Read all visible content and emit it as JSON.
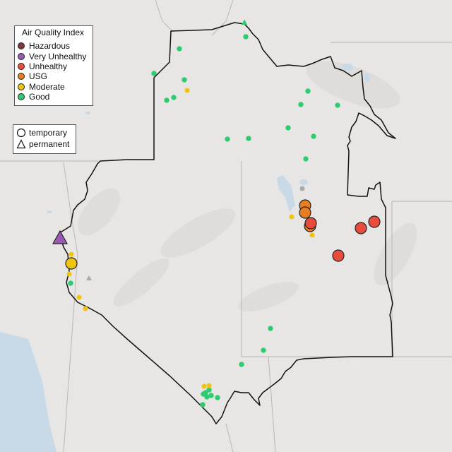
{
  "legend": {
    "title": "Air Quality Index",
    "categories": [
      {
        "label": "Hazardous",
        "color": "#7e3a3a"
      },
      {
        "label": "Very Unhealthy",
        "color": "#9b59b6"
      },
      {
        "label": "Unhealthy",
        "color": "#e74c3c"
      },
      {
        "label": "USG",
        "color": "#e67e22"
      },
      {
        "label": "Moderate",
        "color": "#f1c40f"
      },
      {
        "label": "Good",
        "color": "#2ecc71"
      }
    ],
    "types": [
      {
        "label": "temporary",
        "shape": "circle"
      },
      {
        "label": "permanent",
        "shape": "triangle"
      }
    ]
  }
}
